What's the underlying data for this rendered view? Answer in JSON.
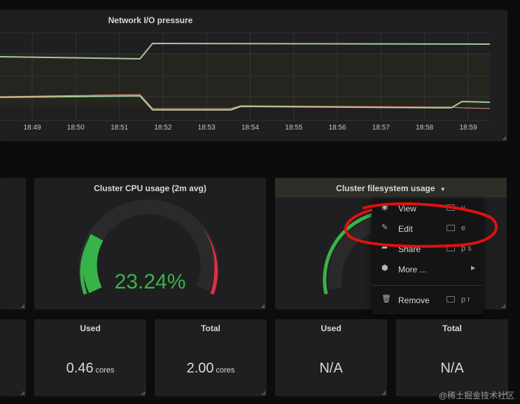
{
  "colors": {
    "bg": "#0b0c0e",
    "panel": "#1f1f21",
    "green": "#37b34a",
    "red": "#e02f44",
    "series_green": "#a6c897",
    "series_red": "#e79b80"
  },
  "network_panel": {
    "title": "Network I/O pressure",
    "chart_data": {
      "type": "line",
      "x": [
        "18:49",
        "18:50",
        "18:51",
        "18:52",
        "18:53",
        "18:54",
        "18:55",
        "18:56",
        "18:57",
        "18:58",
        "18:59"
      ],
      "ticks": [
        "18:49",
        "18:50",
        "18:51",
        "18:52",
        "18:53",
        "18:54",
        "18:55",
        "18:56",
        "18:57",
        "18:58",
        "18:59"
      ],
      "grid": true
    }
  },
  "cpu_panel": {
    "title": "Cluster CPU usage (2m avg)",
    "value_text": "23.24%",
    "value": 23.24
  },
  "fs_panel": {
    "title": "Cluster filesystem usage",
    "dropdown_icon": "caret-down-icon"
  },
  "context_menu": {
    "items": [
      {
        "icon": "eye-icon",
        "label": "View",
        "shortcut": "v"
      },
      {
        "icon": "edit-icon",
        "label": "Edit",
        "shortcut": "e"
      },
      {
        "icon": "share-icon",
        "label": "Share",
        "shortcut": "p s"
      },
      {
        "icon": "cube-icon",
        "label": "More ..."
      },
      {
        "icon": "trash-icon",
        "label": "Remove",
        "shortcut": "p r"
      }
    ]
  },
  "stats": [
    {
      "title": "Used",
      "value": "0.46",
      "unit": "cores"
    },
    {
      "title": "Total",
      "value": "2.00",
      "unit": "cores"
    },
    {
      "title": "Used",
      "value": "N/A",
      "unit": ""
    },
    {
      "title": "Total",
      "value": "N/A",
      "unit": ""
    }
  ],
  "watermark": "@稀土掘金技术社区"
}
